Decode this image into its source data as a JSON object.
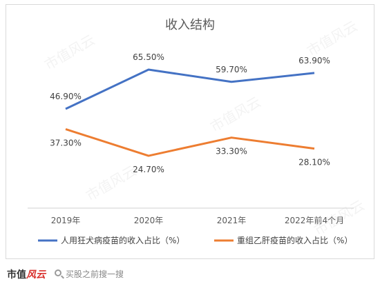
{
  "chart_data": {
    "type": "line",
    "title": "收入结构",
    "categories": [
      "2019年",
      "2020年",
      "2021年",
      "2022年前4个月"
    ],
    "series": [
      {
        "name": "人用狂犬病疫苗的收入占比（%）",
        "values": [
          46.9,
          65.5,
          59.7,
          63.9
        ],
        "labels": [
          "46.90%",
          "65.50%",
          "59.70%",
          "63.90%"
        ],
        "color": "#4472C4"
      },
      {
        "name": "重组乙肝疫苗的收入占比（%）",
        "values": [
          37.3,
          24.7,
          33.3,
          28.1
        ],
        "labels": [
          "37.30%",
          "24.70%",
          "33.30%",
          "28.10%"
        ],
        "color": "#ED7D31"
      }
    ],
    "grid": false,
    "legend": "bottom"
  },
  "footer": {
    "brand_main": "市值",
    "brand_accent": "风云",
    "search_text": "买股之前搜一搜"
  },
  "watermark": "市值风云"
}
